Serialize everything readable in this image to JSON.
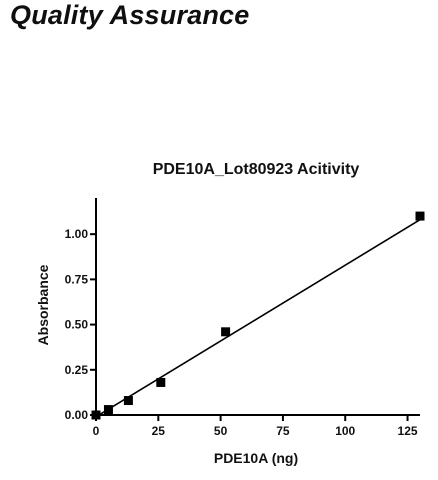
{
  "page": {
    "heading": "Quality Assurance"
  },
  "chart_data": {
    "type": "scatter",
    "title": "PDE10A_Lot80923 Acitivity",
    "xlabel": "PDE10A (ng)",
    "ylabel": "Absorbance",
    "xlim": [
      0,
      130
    ],
    "ylim": [
      0,
      1.2
    ],
    "x_ticks": [
      0,
      25,
      50,
      75,
      100,
      125
    ],
    "x_tick_labels": [
      "0",
      "25",
      "50",
      "75",
      "100",
      "125"
    ],
    "y_ticks": [
      0,
      0.25,
      0.5,
      0.75,
      1.0
    ],
    "y_tick_labels": [
      "0.00",
      "0.25",
      "0.50",
      "0.75",
      "1.00"
    ],
    "grid": false,
    "series": [
      {
        "points": [
          {
            "x": 0,
            "y": 0.0
          },
          {
            "x": 5,
            "y": 0.03
          },
          {
            "x": 13,
            "y": 0.08
          },
          {
            "x": 26,
            "y": 0.18
          },
          {
            "x": 52,
            "y": 0.46
          },
          {
            "x": 130,
            "y": 1.1
          }
        ],
        "color": "#000000"
      }
    ],
    "fit_line": {
      "x_start": 0,
      "y_start": -0.01,
      "x_end": 130,
      "y_end": 1.08,
      "color": "#000000"
    }
  }
}
